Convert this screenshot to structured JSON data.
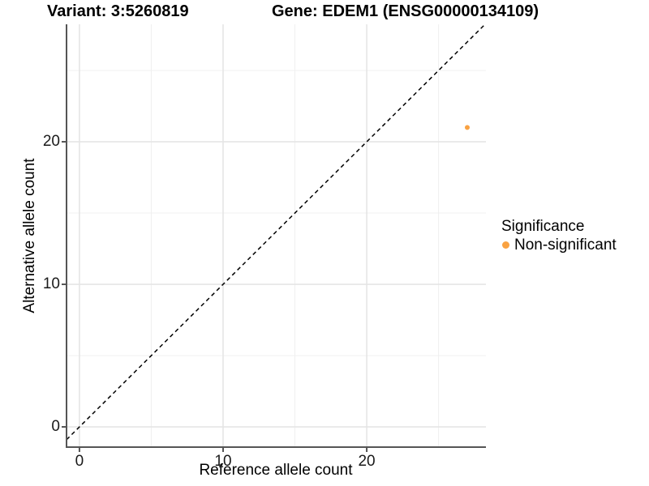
{
  "titles": {
    "variant": "Variant: 3:5260819",
    "gene": "Gene: EDEM1 (ENSG00000134109)"
  },
  "axes": {
    "x_label": "Reference allele count",
    "y_label": "Alternative allele count",
    "x_ticks": [
      "0",
      "10",
      "20"
    ],
    "y_ticks": [
      "0",
      "10",
      "20"
    ]
  },
  "legend": {
    "title": "Significance",
    "items": [
      {
        "label": "Non-significant",
        "color": "#F9A242",
        "marker": "dot"
      }
    ]
  },
  "chart_data": {
    "type": "scatter",
    "title": "Variant: 3:5260819    Gene: EDEM1 (ENSG00000134109)",
    "xlabel": "Reference allele count",
    "ylabel": "Alternative allele count",
    "xlim": [
      -0.9,
      28.3
    ],
    "ylim": [
      -1.42,
      28.24
    ],
    "x_major_ticks": [
      0,
      10,
      20
    ],
    "y_major_ticks": [
      0,
      10,
      20
    ],
    "x_minor_gridlines": [
      5,
      15,
      25
    ],
    "y_minor_gridlines": [
      5,
      15,
      25
    ],
    "grid": true,
    "legend_position": "right",
    "series": [
      {
        "name": "Non-significant",
        "color": "#F9A242",
        "points": [
          {
            "x": 27,
            "y": 21
          }
        ]
      }
    ],
    "reference_line": {
      "type": "identity",
      "equation": "y = x",
      "style": "dashed",
      "color": "#000000"
    }
  },
  "colors": {
    "background": "#ffffff",
    "axis_line": "#555555",
    "grid_major": "#e4e4e4",
    "grid_minor": "#f0f0f0",
    "tick_text": "#1a1a1a",
    "point": "#F9A242"
  }
}
